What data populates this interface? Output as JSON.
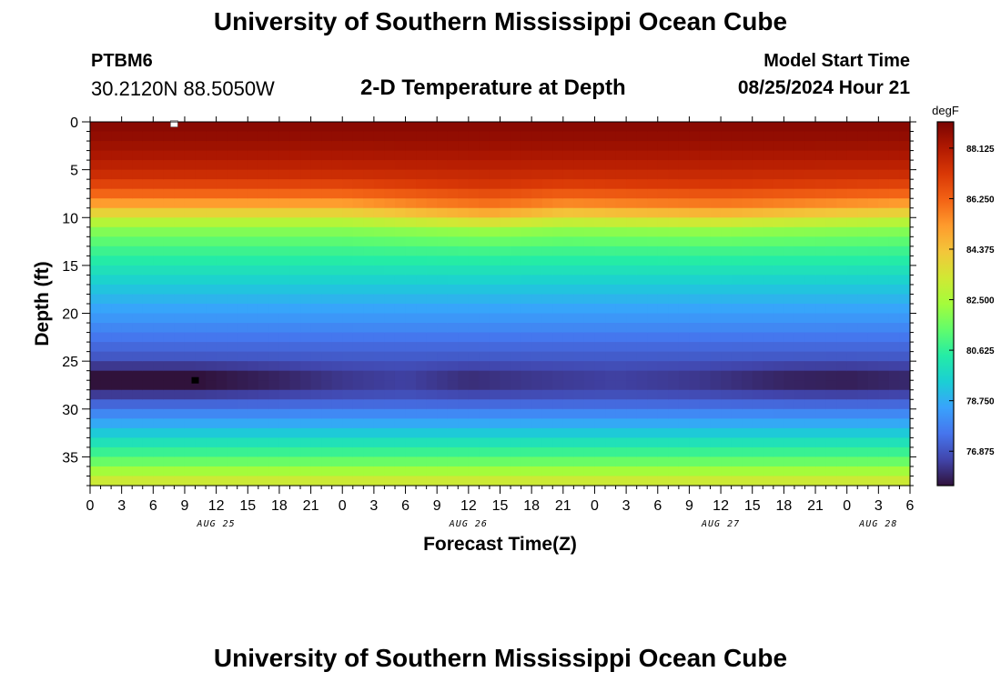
{
  "header": {
    "title": "University of Southern Mississippi Ocean Cube",
    "station": "PTBM6",
    "coords": "30.2120N  88.5050W",
    "plot_title": "2-D Temperature at Depth",
    "model_start_label": "Model Start Time",
    "model_start_value": "08/25/2024 Hour 21"
  },
  "footer": {
    "title": "University of Southern Mississippi Ocean Cube"
  },
  "chart_data": {
    "type": "heatmap",
    "title": "2-D Temperature at Depth",
    "xlabel": "Forecast Time(Z)",
    "ylabel": "Depth (ft)",
    "x_ticks": [
      "0",
      "3",
      "6",
      "9",
      "12",
      "15",
      "18",
      "21",
      "0",
      "3",
      "6",
      "9",
      "12",
      "15",
      "18",
      "21",
      "0",
      "3",
      "6",
      "9",
      "12",
      "15",
      "18",
      "21",
      "0",
      "3",
      "6"
    ],
    "x_range_hours": [
      0,
      78
    ],
    "date_labels": [
      {
        "label": "AUG 25",
        "hour": 12
      },
      {
        "label": "AUG 26",
        "hour": 36
      },
      {
        "label": "AUG 27",
        "hour": 60
      },
      {
        "label": "AUG 28",
        "hour": 75
      }
    ],
    "y_ticks": [
      "0",
      "5",
      "10",
      "15",
      "20",
      "25",
      "30",
      "35"
    ],
    "ylim": [
      0,
      38
    ],
    "colorbar": {
      "unit": "degF",
      "ticks": [
        "88.125",
        "86.250",
        "84.375",
        "82.500",
        "80.625",
        "78.750",
        "76.875"
      ],
      "range": [
        75.6,
        89.1
      ],
      "colors": [
        "#30123b",
        "#4145ab",
        "#4675ed",
        "#39a2fc",
        "#1bcfd4",
        "#24eca6",
        "#61fc6c",
        "#a4fc3b",
        "#d1e834",
        "#f3c63a",
        "#fe9b2d",
        "#f36315",
        "#d93806",
        "#b11901",
        "#7a0402"
      ]
    },
    "profile": [
      {
        "depth": 0,
        "temp": 88.9
      },
      {
        "depth": 2,
        "temp": 88.6
      },
      {
        "depth": 4,
        "temp": 88.1
      },
      {
        "depth": 6,
        "temp": 87.3
      },
      {
        "depth": 8,
        "temp": 85.8
      },
      {
        "depth": 9,
        "temp": 84.6
      },
      {
        "depth": 10,
        "temp": 83.3
      },
      {
        "depth": 11,
        "temp": 82.1
      },
      {
        "depth": 13,
        "temp": 81.0
      },
      {
        "depth": 15,
        "temp": 80.2
      },
      {
        "depth": 17,
        "temp": 79.4
      },
      {
        "depth": 19,
        "temp": 78.7
      },
      {
        "depth": 21,
        "temp": 78.1
      },
      {
        "depth": 23,
        "temp": 77.4
      },
      {
        "depth": 25,
        "temp": 76.9
      },
      {
        "depth": 26,
        "temp": 76.5
      },
      {
        "depth": 27,
        "temp": 76.3
      },
      {
        "depth": 28,
        "temp": 76.5
      },
      {
        "depth": 29,
        "temp": 77.0
      },
      {
        "depth": 30,
        "temp": 77.6
      },
      {
        "depth": 31,
        "temp": 78.3
      },
      {
        "depth": 32,
        "temp": 79.0
      },
      {
        "depth": 33,
        "temp": 79.7
      },
      {
        "depth": 34,
        "temp": 80.4
      },
      {
        "depth": 35,
        "temp": 81.1
      },
      {
        "depth": 36,
        "temp": 81.9
      },
      {
        "depth": 37,
        "temp": 82.8
      },
      {
        "depth": 38,
        "temp": 83.6
      }
    ],
    "cold_core": [
      {
        "hour": 0,
        "anomaly": -0.9
      },
      {
        "hour": 10,
        "anomaly": -0.9
      },
      {
        "hour": 18,
        "anomaly": -0.5
      },
      {
        "hour": 24,
        "anomaly": -0.1
      },
      {
        "hour": 30,
        "anomaly": 0.1
      },
      {
        "hour": 36,
        "anomaly": -0.3
      },
      {
        "hour": 42,
        "anomaly": -0.1
      },
      {
        "hour": 50,
        "anomaly": 0.1
      },
      {
        "hour": 58,
        "anomaly": -0.1
      },
      {
        "hour": 66,
        "anomaly": -0.5
      },
      {
        "hour": 72,
        "anomaly": -0.6
      },
      {
        "hour": 78,
        "anomaly": -0.4
      }
    ],
    "thermocline_shift": [
      {
        "hour": 0,
        "ft": 0
      },
      {
        "hour": 24,
        "ft": 0
      },
      {
        "hour": 38,
        "ft": 0.8
      },
      {
        "hour": 45,
        "ft": 0.3
      },
      {
        "hour": 60,
        "ft": 0.6
      },
      {
        "hour": 78,
        "ft": 0
      }
    ],
    "markers": [
      {
        "hour": 8,
        "depth": 0.2,
        "color": "#ffffff"
      },
      {
        "hour": 10,
        "depth": 27,
        "color": "#000000"
      }
    ]
  }
}
